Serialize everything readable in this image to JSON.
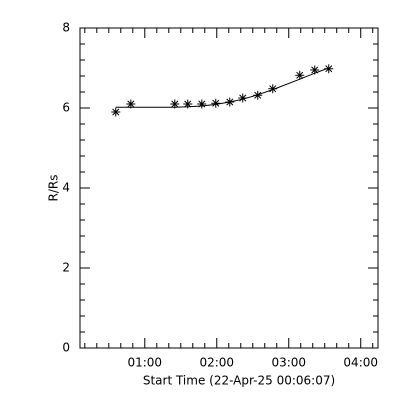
{
  "chart_data": {
    "type": "scatter",
    "xlabel": "Start Time (22-Apr-25 00:06:07)",
    "ylabel": "R/Rs",
    "series": [
      {
        "marker": "asterisk",
        "color": "#000000",
        "x": [
          0.597,
          0.806,
          1.417,
          1.597,
          1.792,
          1.986,
          2.181,
          2.361,
          2.569,
          2.778,
          3.153,
          3.361,
          3.556
        ],
        "values": [
          5.9,
          6.1,
          6.1,
          6.1,
          6.1,
          6.12,
          6.15,
          6.25,
          6.32,
          6.48,
          6.82,
          6.95,
          6.98
        ]
      },
      {
        "marker": "line",
        "color": "#000000",
        "x": [
          0.597,
          0.806,
          1.417,
          1.597,
          1.792,
          1.986,
          2.181,
          2.361,
          2.569,
          2.778,
          3.153,
          3.361,
          3.556
        ],
        "values": [
          6.02,
          6.02,
          6.02,
          6.03,
          6.05,
          6.09,
          6.15,
          6.22,
          6.33,
          6.46,
          6.72,
          6.87,
          7.0
        ]
      }
    ],
    "xlim": [
      0.1,
      4.24
    ],
    "ylim": [
      0,
      8
    ],
    "xticks": [
      {
        "value": 1,
        "label": "01:00"
      },
      {
        "value": 2,
        "label": "02:00"
      },
      {
        "value": 3,
        "label": "03:00"
      },
      {
        "value": 4,
        "label": "04:00"
      }
    ],
    "yticks": [
      0,
      2,
      4,
      6,
      8
    ]
  }
}
